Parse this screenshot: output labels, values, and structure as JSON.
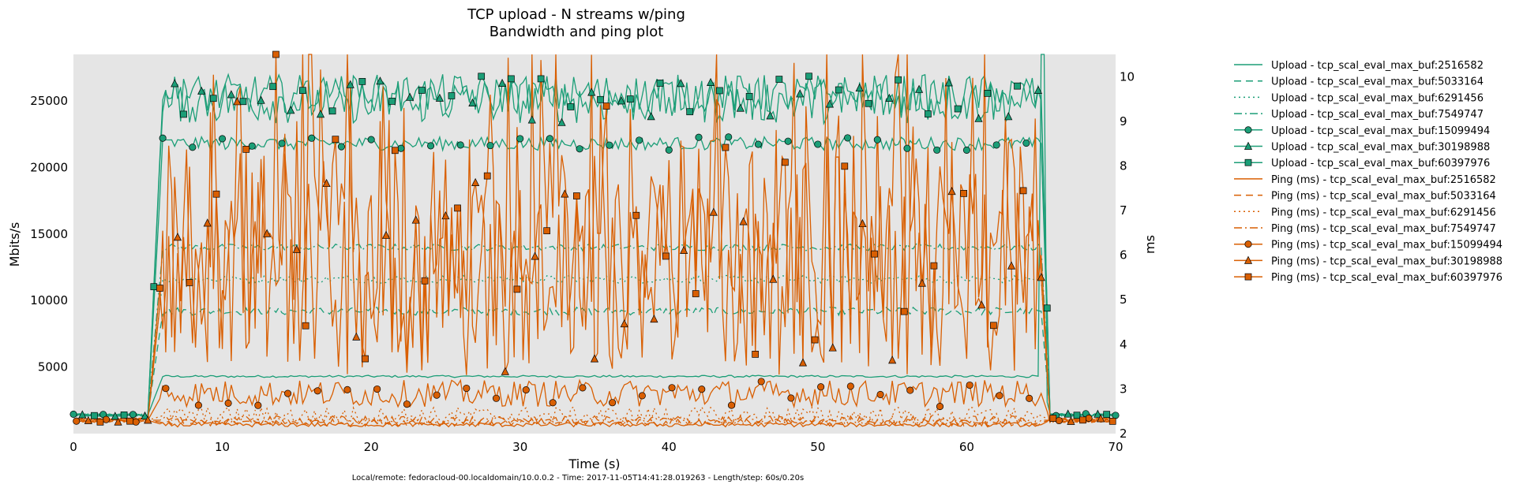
{
  "chart_data": {
    "type": "line",
    "title": "TCP upload - N streams w/ping",
    "subtitle": "Bandwidth and ping plot",
    "xlabel": "Time (s)",
    "ylabel_left": "Mbits/s",
    "ylabel_right": "ms",
    "xlim": [
      0,
      70
    ],
    "ylim_left": [
      0,
      28500
    ],
    "ylim_right": [
      2,
      10.5
    ],
    "x_ticks": [
      "0",
      "10",
      "20",
      "30",
      "40",
      "50",
      "60",
      "70"
    ],
    "y_left_ticks": [
      "5000",
      "10000",
      "15000",
      "20000",
      "25000"
    ],
    "y_right_ticks": [
      "2",
      "3",
      "4",
      "5",
      "6",
      "7",
      "8",
      "9",
      "10"
    ],
    "grid": false,
    "legend_position": "outside-right",
    "footer": "Local/remote: fedoracloud-00.localdomain/10.0.0.2 - Time: 2017-11-05T14:41:28.019263 - Length/step: 60s/0.20s",
    "colors": {
      "upload": "#1b9e77",
      "ping": "#d95f02",
      "plot_bg": "#e5e5e5"
    },
    "series": [
      {
        "name": "Upload - tcp_scal_eval_max_buf:2516582",
        "axis": "left",
        "group": "upload",
        "style": "solid",
        "marker": "none",
        "pre": 1400,
        "plateau": 4300,
        "post": 1400,
        "noise": 80,
        "peak": 28500
      },
      {
        "name": "Upload - tcp_scal_eval_max_buf:5033164",
        "axis": "left",
        "group": "upload",
        "style": "dashed",
        "marker": "none",
        "pre": 1400,
        "plateau": 9200,
        "post": 1400,
        "noise": 300
      },
      {
        "name": "Upload - tcp_scal_eval_max_buf:6291456",
        "axis": "left",
        "group": "upload",
        "style": "dotted",
        "marker": "none",
        "pre": 1400,
        "plateau": 11600,
        "post": 1400,
        "noise": 300
      },
      {
        "name": "Upload - tcp_scal_eval_max_buf:7549747",
        "axis": "left",
        "group": "upload",
        "style": "dashdot",
        "marker": "none",
        "pre": 1400,
        "plateau": 14000,
        "post": 1400,
        "noise": 250
      },
      {
        "name": "Upload - tcp_scal_eval_max_buf:15099494",
        "axis": "left",
        "group": "upload",
        "style": "solid",
        "marker": "circle",
        "pre": 1400,
        "plateau": 21800,
        "post": 1400,
        "noise": 500
      },
      {
        "name": "Upload - tcp_scal_eval_max_buf:30198988",
        "axis": "left",
        "group": "upload",
        "style": "solid",
        "marker": "triangle",
        "pre": 1400,
        "plateau": 25000,
        "post": 1400,
        "noise": 1700
      },
      {
        "name": "Upload - tcp_scal_eval_max_buf:60397976",
        "axis": "left",
        "group": "upload",
        "style": "solid",
        "marker": "square",
        "pre": 1400,
        "plateau": 25500,
        "post": 1400,
        "noise": 1500
      },
      {
        "name": "Ping (ms) - tcp_scal_eval_max_buf:2516582",
        "axis": "right",
        "group": "ping",
        "style": "solid",
        "marker": "none",
        "pre": 2.3,
        "plateau": 2.2,
        "post": 2.3,
        "noise": 0.05
      },
      {
        "name": "Ping (ms) - tcp_scal_eval_max_buf:5033164",
        "axis": "right",
        "group": "ping",
        "style": "dashed",
        "marker": "none",
        "pre": 2.3,
        "plateau": 2.25,
        "post": 2.3,
        "noise": 0.08
      },
      {
        "name": "Ping (ms) - tcp_scal_eval_max_buf:6291456",
        "axis": "right",
        "group": "ping",
        "style": "dotted",
        "marker": "none",
        "pre": 2.3,
        "plateau": 2.4,
        "post": 2.3,
        "noise": 0.2
      },
      {
        "name": "Ping (ms) - tcp_scal_eval_max_buf:7549747",
        "axis": "right",
        "group": "ping",
        "style": "dashdot",
        "marker": "none",
        "pre": 2.3,
        "plateau": 2.3,
        "post": 2.3,
        "noise": 0.1
      },
      {
        "name": "Ping (ms) - tcp_scal_eval_max_buf:15099494",
        "axis": "right",
        "group": "ping",
        "style": "solid",
        "marker": "circle",
        "pre": 2.3,
        "plateau": 2.9,
        "post": 2.3,
        "noise": 0.3
      },
      {
        "name": "Ping (ms) - tcp_scal_eval_max_buf:30198988",
        "axis": "right",
        "group": "ping",
        "style": "solid",
        "marker": "triangle",
        "pre": 2.3,
        "plateau": 5.5,
        "post": 2.3,
        "noise": 2.2
      },
      {
        "name": "Ping (ms) - tcp_scal_eval_max_buf:60397976",
        "axis": "right",
        "group": "ping",
        "style": "solid",
        "marker": "square",
        "pre": 2.3,
        "plateau": 6.0,
        "post": 2.3,
        "noise": 2.6
      }
    ],
    "phases": {
      "ramp_start": 5.0,
      "ramp_end": 6.0,
      "drop_start": 65.0,
      "drop_end": 65.6,
      "x_end": 70.0
    }
  }
}
